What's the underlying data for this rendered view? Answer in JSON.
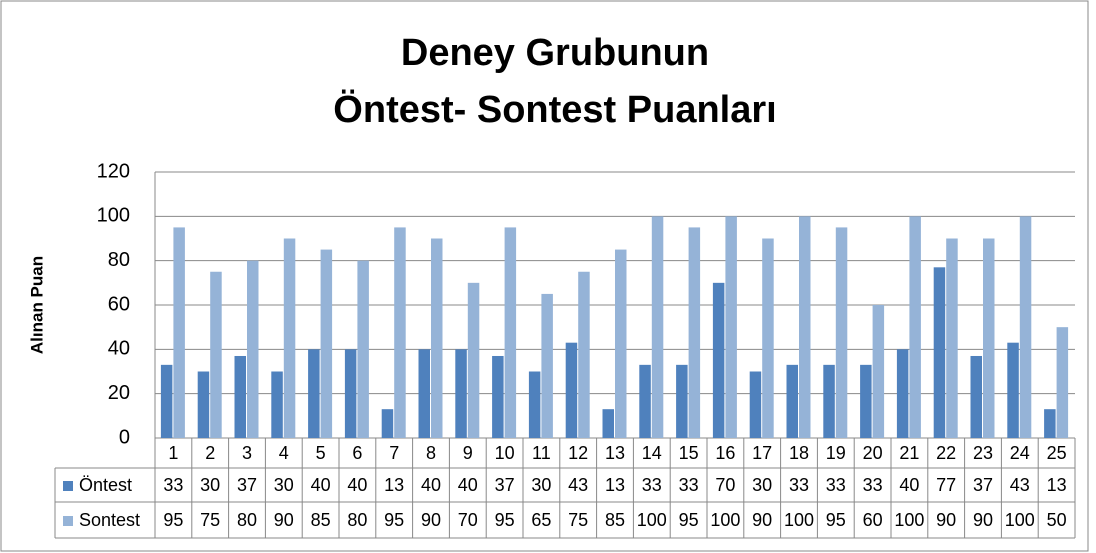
{
  "chart_data": {
    "type": "bar",
    "title": [
      "Deney Grubunun",
      "Öntest- Sontest Puanları"
    ],
    "y_label": "Alınan Puan",
    "categories": [
      "1",
      "2",
      "3",
      "4",
      "5",
      "6",
      "7",
      "8",
      "9",
      "10",
      "11",
      "12",
      "13",
      "14",
      "15",
      "16",
      "17",
      "18",
      "19",
      "20",
      "21",
      "22",
      "23",
      "24",
      "25"
    ],
    "series": [
      {
        "name": "Öntest",
        "color": "#4f81bd",
        "values": [
          33,
          30,
          37,
          30,
          40,
          40,
          13,
          40,
          40,
          37,
          30,
          43,
          13,
          33,
          33,
          70,
          30,
          33,
          33,
          33,
          40,
          77,
          37,
          43,
          13
        ]
      },
      {
        "name": "Sontest",
        "color": "#95b3d7",
        "values": [
          95,
          75,
          80,
          90,
          85,
          80,
          95,
          90,
          70,
          95,
          65,
          75,
          85,
          100,
          95,
          100,
          90,
          100,
          95,
          60,
          100,
          90,
          90,
          100,
          50
        ]
      }
    ],
    "ylim": [
      0,
      120
    ],
    "yticks": [
      0,
      20,
      40,
      60,
      80,
      100,
      120
    ],
    "grid": true
  }
}
